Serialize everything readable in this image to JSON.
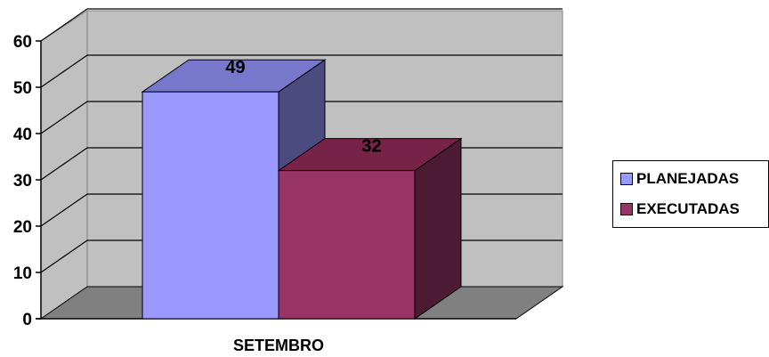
{
  "chart_data": {
    "type": "bar",
    "categories": [
      "SETEMBRO"
    ],
    "series": [
      {
        "name": "PLANEJADAS",
        "values": [
          49
        ],
        "color": "#9999ff"
      },
      {
        "name": "EXECUTADAS",
        "values": [
          32
        ],
        "color": "#993366"
      }
    ],
    "ylim": [
      0,
      60
    ],
    "yticks": [
      "0",
      "10",
      "20",
      "30",
      "40",
      "50",
      "60"
    ],
    "title": "",
    "xlabel": "",
    "ylabel": "",
    "grid": true,
    "legend_position": "right",
    "style": "3d-clustered-column"
  }
}
